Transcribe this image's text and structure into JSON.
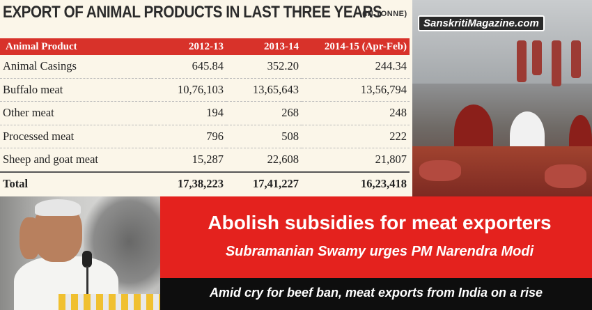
{
  "table": {
    "title": "EXPORT OF ANIMAL PRODUCTS IN LAST THREE YEARS",
    "unit": "(IN TONNE)",
    "headers": [
      "Animal Product",
      "2012-13",
      "2013-14",
      "2014-15 (Apr-Feb)"
    ],
    "rows": [
      [
        "Animal Casings",
        "645.84",
        "352.20",
        "244.34"
      ],
      [
        "Buffalo meat",
        "10,76,103",
        "13,65,643",
        "13,56,794"
      ],
      [
        "Other meat",
        "194",
        "268",
        "248"
      ],
      [
        "Processed meat",
        "796",
        "508",
        "222"
      ],
      [
        "Sheep and goat meat",
        "15,287",
        "22,608",
        "21,807"
      ],
      [
        "Total",
        "17,38,223",
        "17,41,227",
        "16,23,418"
      ]
    ]
  },
  "brand": {
    "name": "SanskritiMagazine.com"
  },
  "banner": {
    "headline": "Abolish subsidies for meat exporters",
    "subheadline": "Subramanian Swamy urges PM Narendra Modi",
    "tagline": "Amid cry for beef ban, meat exports from India on a rise"
  },
  "colors": {
    "accent_red": "#e4221e",
    "header_red": "#d8322a",
    "dark": "#0e0e0e",
    "cream": "#fbf6e9"
  }
}
